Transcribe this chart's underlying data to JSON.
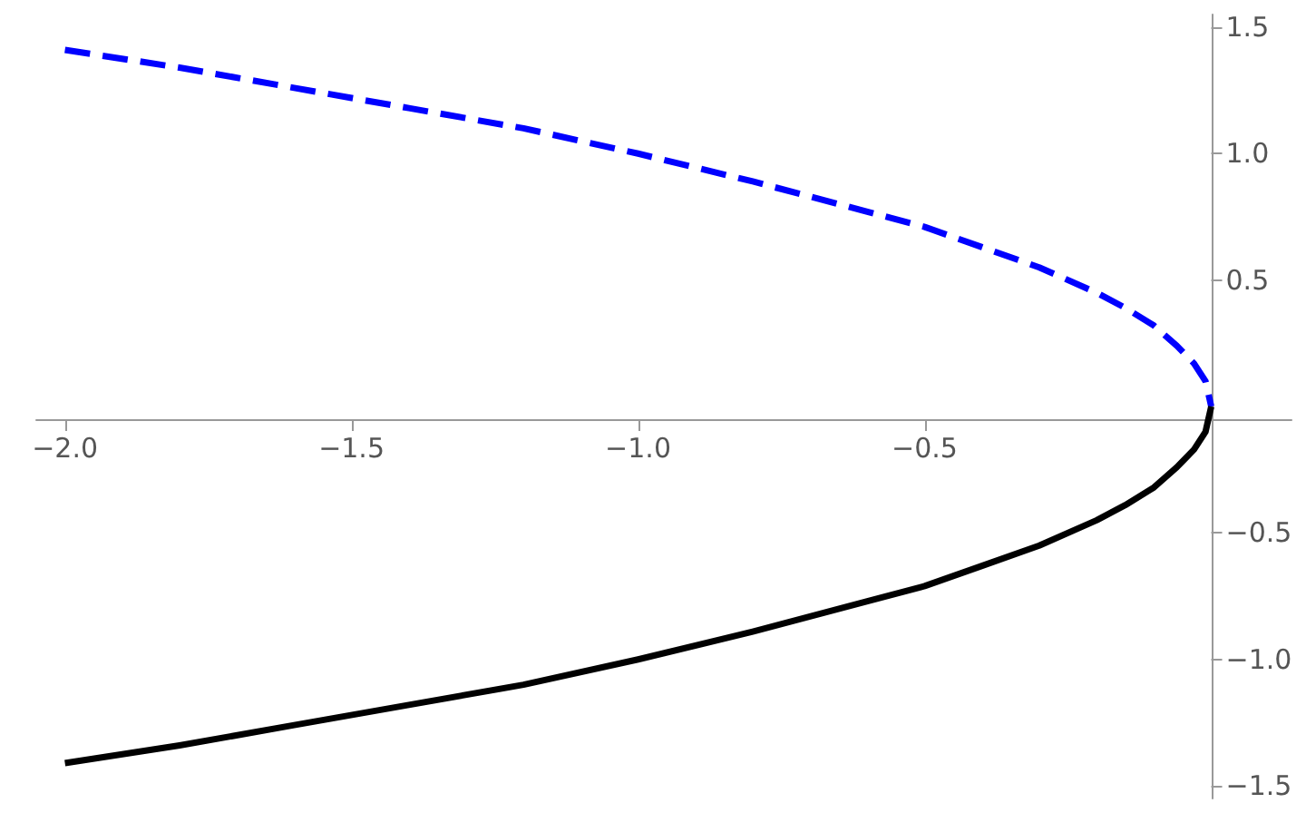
{
  "chart_data": {
    "type": "line",
    "x": [
      -2,
      -1.8,
      -1.6,
      -1.4,
      -1.2,
      -1,
      -0.8,
      -0.6,
      -0.5,
      -0.4,
      -0.3,
      -0.2,
      -0.15,
      -0.1,
      -0.06,
      -0.03,
      -0.01,
      0
    ],
    "series": [
      {
        "color": "#0000ff",
        "line_style": "dashed",
        "values": [
          1.41,
          1.34,
          1.26,
          1.18,
          1.1,
          1.0,
          0.89,
          0.77,
          0.71,
          0.63,
          0.55,
          0.45,
          0.39,
          0.32,
          0.24,
          0.17,
          0.1,
          0
        ]
      },
      {
        "color": "#000000",
        "line_style": "solid",
        "values": [
          -1.41,
          -1.34,
          -1.26,
          -1.18,
          -1.1,
          -1.0,
          -0.89,
          -0.77,
          -0.71,
          -0.63,
          -0.55,
          -0.45,
          -0.39,
          -0.32,
          -0.24,
          -0.17,
          -0.1,
          0
        ]
      }
    ],
    "xlim": [
      -2.05,
      0.14
    ],
    "ylim": [
      -1.55,
      1.55
    ],
    "xticks": [
      {
        "value": -2,
        "label": "−2.0"
      },
      {
        "value": -1.5,
        "label": "−1.5"
      },
      {
        "value": -1,
        "label": "−1.0"
      },
      {
        "value": -0.5,
        "label": "−0.5"
      }
    ],
    "yticks": [
      {
        "value": -1.5,
        "label": "−1.5"
      },
      {
        "value": -1,
        "label": "−1.0"
      },
      {
        "value": -0.5,
        "label": "−0.5"
      },
      {
        "value": 0.5,
        "label": "0.5"
      },
      {
        "value": 1,
        "label": "1.0"
      },
      {
        "value": 1.5,
        "label": "1.5"
      }
    ],
    "grid": false,
    "marker": "none"
  }
}
